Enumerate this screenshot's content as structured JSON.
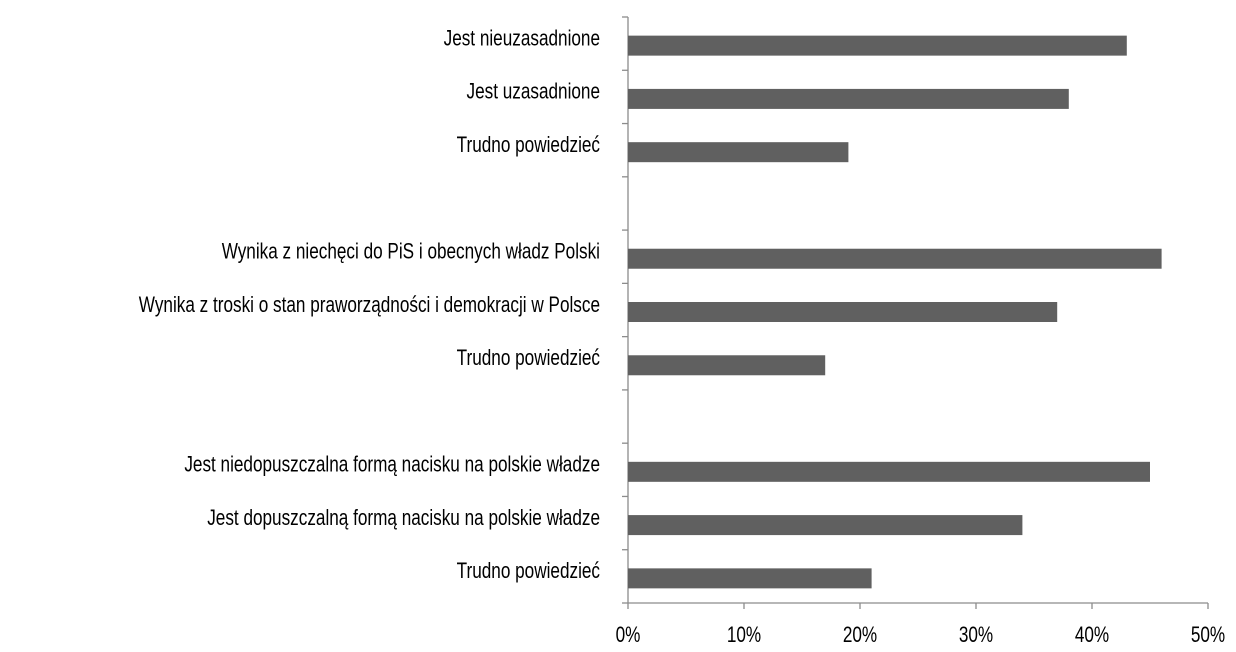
{
  "chart_data": {
    "type": "hbar",
    "categories": [
      "Jest nieuzasadnione",
      "Jest uzasadnione",
      "Trudno powiedzieć",
      null,
      "Wynika z niechęci do PiS i obecnych władz Polski",
      "Wynika z troski o stan praworządności i demokracji w Polsce",
      "Trudno powiedzieć",
      null,
      "Jest niedopuszczalna formą nacisku na polskie władze",
      "Jest dopuszczalną formą nacisku na polskie władze",
      "Trudno powiedzieć"
    ],
    "values": [
      43,
      38,
      19,
      null,
      46,
      37,
      17,
      null,
      45,
      34,
      21
    ],
    "color": "#606060",
    "xlim": [
      0,
      50
    ],
    "xticks": [
      {
        "value": 0,
        "label": "0%"
      },
      {
        "value": 10,
        "label": "10%"
      },
      {
        "value": 20,
        "label": "20%"
      },
      {
        "value": 30,
        "label": "30%"
      },
      {
        "value": 40,
        "label": "40%"
      },
      {
        "value": 50,
        "label": "50%"
      }
    ]
  }
}
